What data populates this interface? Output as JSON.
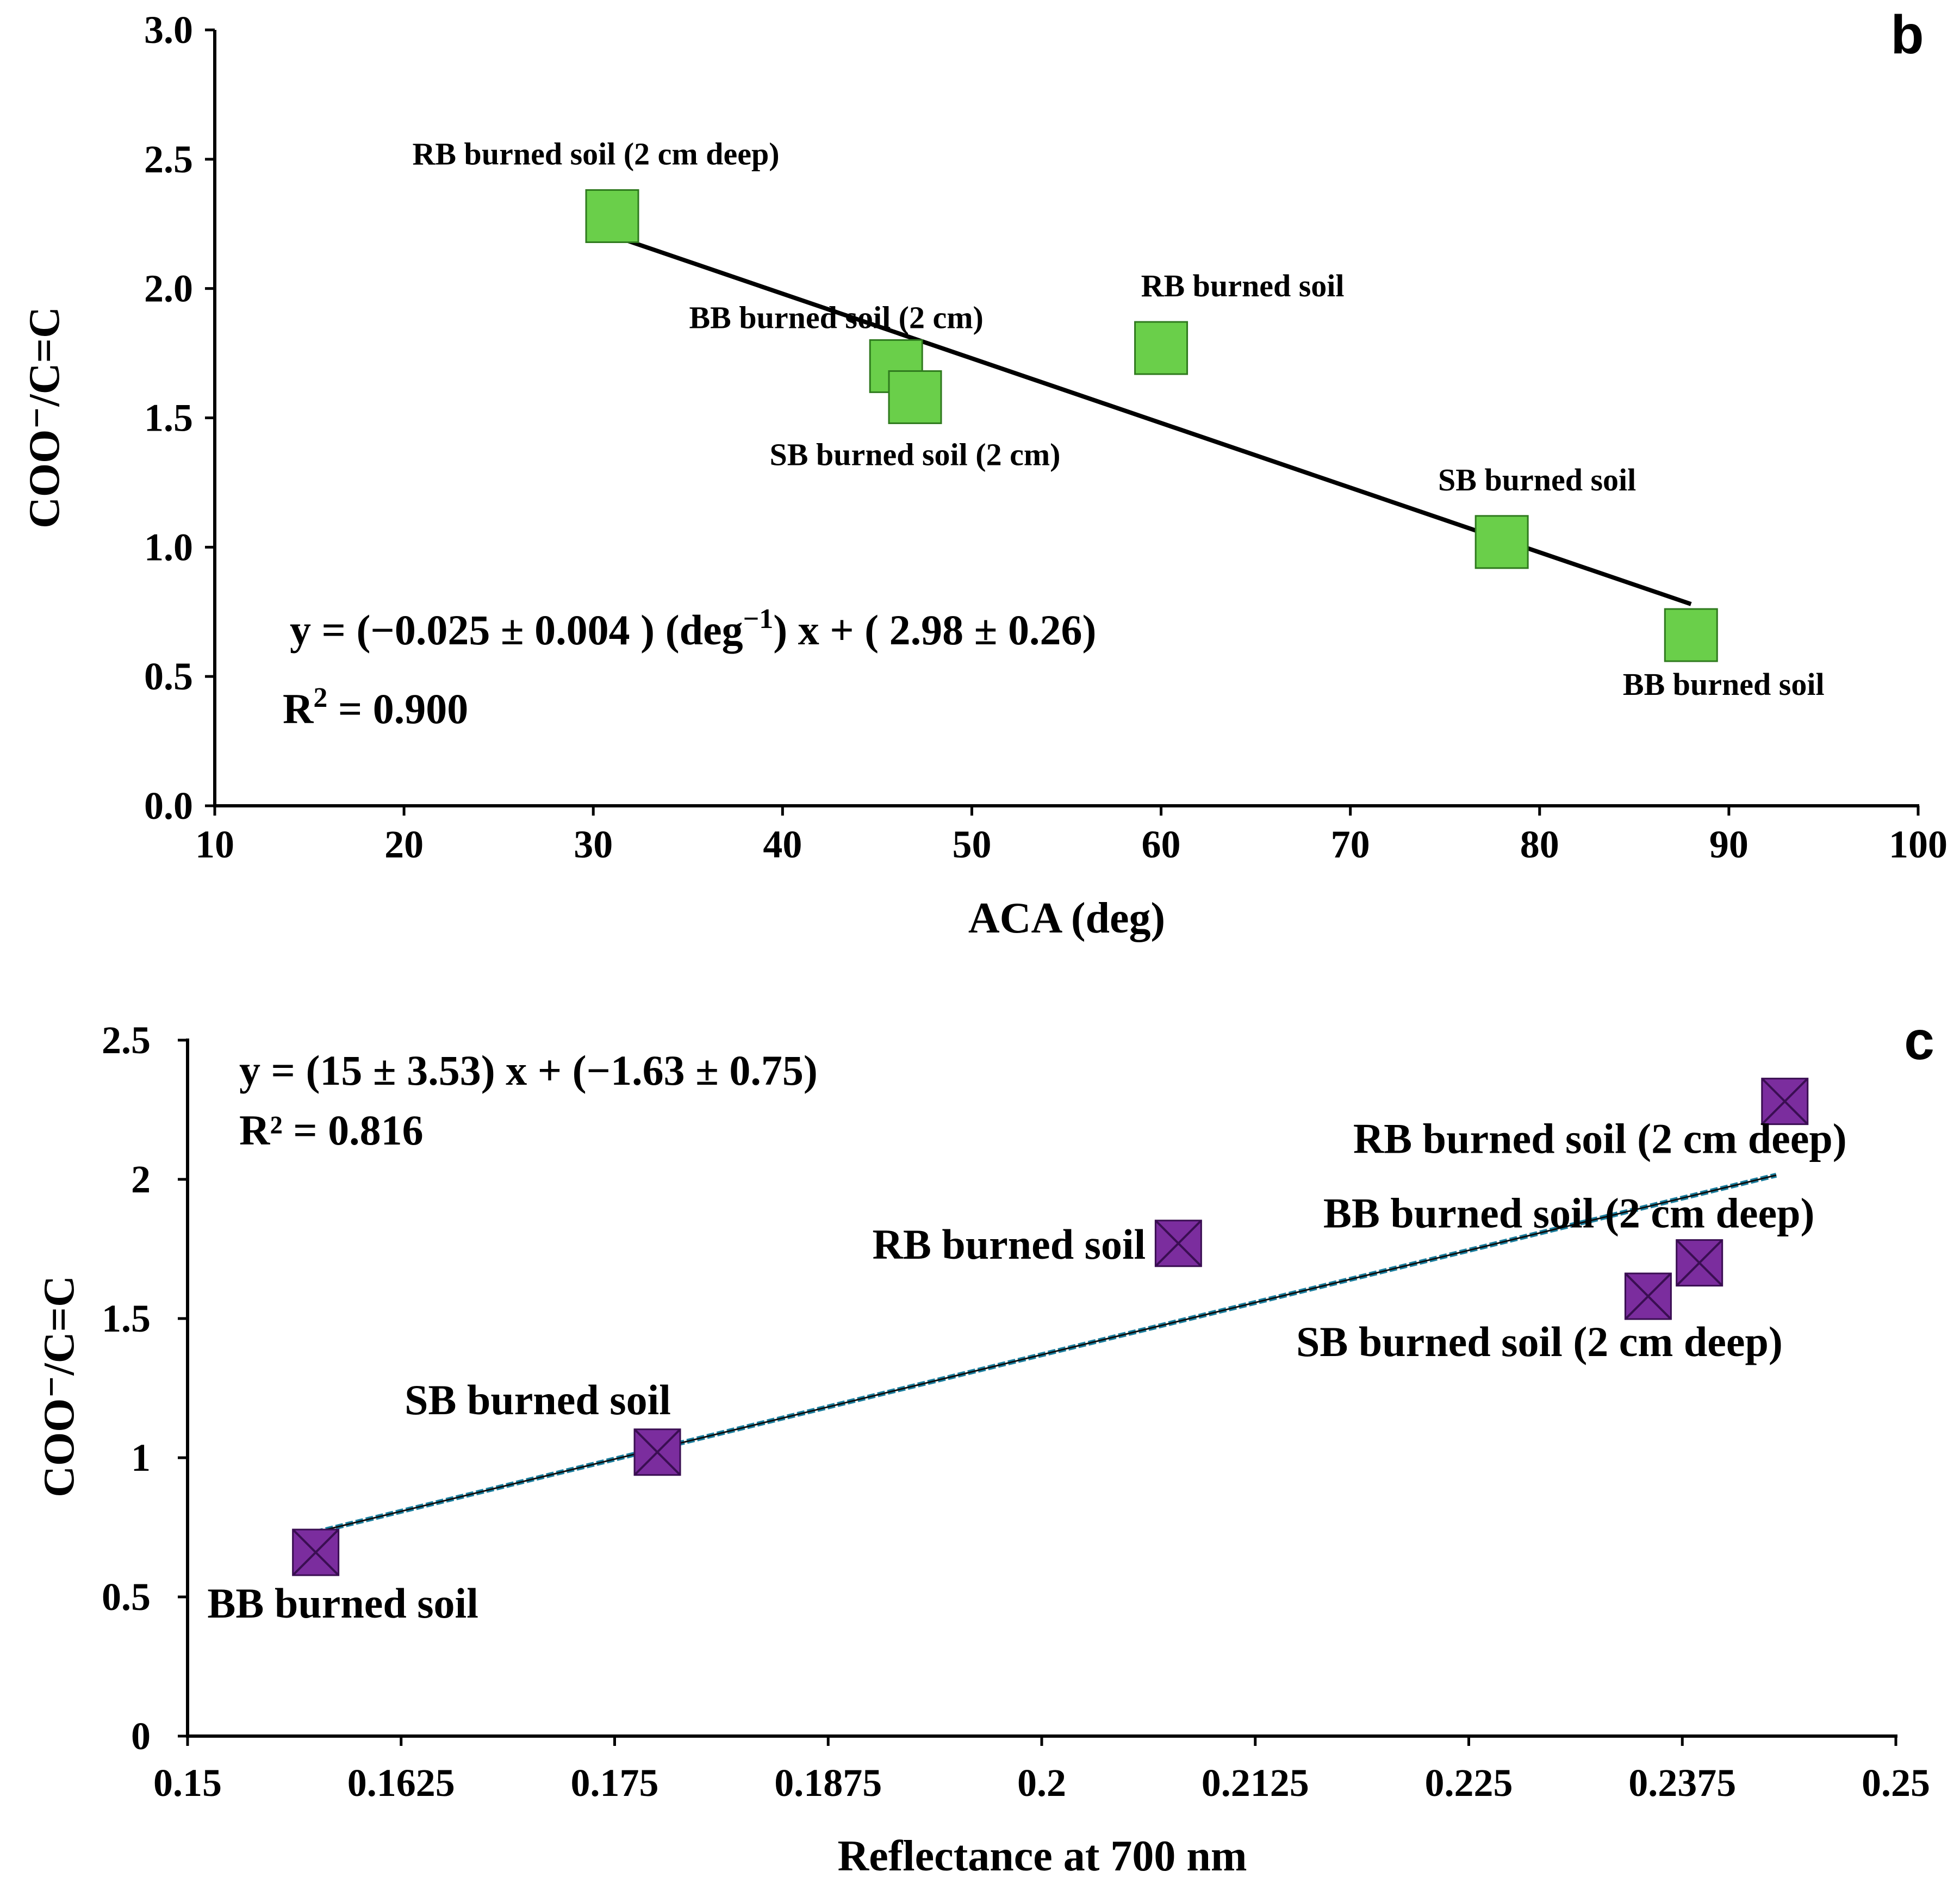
{
  "chart_data": [
    {
      "type": "scatter",
      "panel": "b",
      "xlabel": "ACA (deg)",
      "ylabel": "COO⁻/C=C",
      "xlim": [
        10,
        100
      ],
      "ylim": [
        0,
        3
      ],
      "x_ticks": [
        "10",
        "20",
        "30",
        "40",
        "50",
        "60",
        "70",
        "80",
        "90",
        "100"
      ],
      "y_ticks": [
        "0.0",
        "0.5",
        "1.0",
        "1.5",
        "2.0",
        "2.5",
        "3.0"
      ],
      "marker_color": "#6ACF4A",
      "marker_edge": "#2F7A1E",
      "points": [
        {
          "x": 31,
          "y": 2.28,
          "label": "RB burned soil (2 cm deep)"
        },
        {
          "x": 46,
          "y": 1.7,
          "label": "BB burned soil (2 cm)"
        },
        {
          "x": 47,
          "y": 1.58,
          "label": "SB burned soil (2 cm)"
        },
        {
          "x": 60,
          "y": 1.77,
          "label": "RB burned soil"
        },
        {
          "x": 78,
          "y": 1.02,
          "label": "SB burned soil"
        },
        {
          "x": 88,
          "y": 0.66,
          "label": "BB burned soil"
        }
      ],
      "fit": {
        "slope": -0.025,
        "intercept": 2.98,
        "x_range": [
          31,
          88
        ],
        "color": "#000000"
      },
      "equation": "y = (−0.025 ± 0.004 ) (deg",
      "equation_sup": "−1",
      "equation_tail": ") x + ( 2.98 ± 0.26)",
      "r2_prefix": "R",
      "r2_sup": "2",
      "r2_value": " = 0.900"
    },
    {
      "type": "scatter",
      "panel": "c",
      "xlabel": "Reflectance at 700 nm",
      "ylabel": "COO⁻/C=C",
      "xlim": [
        0.15,
        0.25
      ],
      "ylim": [
        0,
        2.5
      ],
      "x_ticks": [
        "0.15",
        "0.1625",
        "0.175",
        "0.1875",
        "0.2",
        "0.2125",
        "0.225",
        "0.2375",
        "0.25"
      ],
      "y_ticks": [
        "0",
        "0.5",
        "1",
        "1.5",
        "2",
        "2.5"
      ],
      "marker_color": "#7B2D9E",
      "marker_edge": "#3A0E52",
      "points": [
        {
          "x": 0.1575,
          "y": 0.66,
          "label": "BB burned soil"
        },
        {
          "x": 0.1775,
          "y": 1.02,
          "label": "SB burned soil"
        },
        {
          "x": 0.208,
          "y": 1.77,
          "label": "RB burned soil"
        },
        {
          "x": 0.2355,
          "y": 1.58,
          "label": "SB burned soil (2 cm deep)"
        },
        {
          "x": 0.2385,
          "y": 1.7,
          "label": "BB burned soil (2 cm deep)"
        },
        {
          "x": 0.2435,
          "y": 2.28,
          "label": "RB burned soil (2 cm deep)"
        }
      ],
      "fit": {
        "slope": 15,
        "intercept": -1.63,
        "x_range": [
          0.1575,
          0.243
        ],
        "color": "#1B7E9E"
      },
      "equation": "y = (15 ± 3.53) x + (−1.63 ± 0.75)",
      "r2": "R² = 0.816"
    }
  ]
}
